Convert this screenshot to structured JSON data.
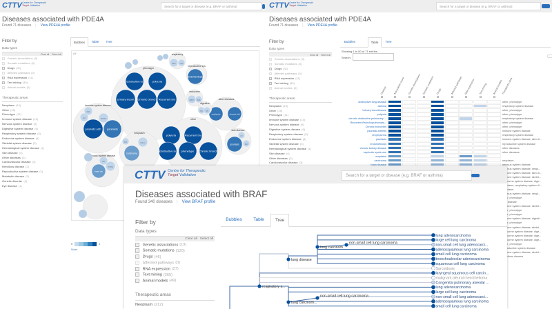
{
  "colors": {
    "brand": "#2a6ebb",
    "dark_blue": "#08519c",
    "header_bg": "#eeeeee"
  },
  "logo": {
    "text": "CTTV",
    "line1": "Centre for Therapeutic",
    "line2a": "Target",
    "line2b": " Validation"
  },
  "search": {
    "placeholder": "Search for a target or disease (e.g. BRAF or asthma)",
    "icon": "search-button"
  },
  "pde4a": {
    "title": "Diseases associated with PDE4A",
    "found": "Found 71 diseases",
    "profile_link": "View PDE4A profile",
    "filter_by": "Filter by",
    "data_types_label": "Data types",
    "clear_all": "Clear all",
    "select_all": "Select all",
    "data_types": [
      {
        "label": "Genetic associations",
        "count": "(0)",
        "enabled": false
      },
      {
        "label": "Somatic mutations",
        "count": "(0)",
        "enabled": false
      },
      {
        "label": "Drugs",
        "count": "(41)",
        "enabled": true
      },
      {
        "label": "Affected pathways",
        "count": "(0)",
        "enabled": false
      },
      {
        "label": "RNA expression",
        "count": "(11)",
        "enabled": true
      },
      {
        "label": "Text mining",
        "count": "(30)",
        "enabled": true
      },
      {
        "label": "Animal models",
        "count": "(0)",
        "enabled": false
      }
    ],
    "therapeutic_label": "Therapeutic areas",
    "therapeutic_areas": [
      {
        "label": "Neoplasm",
        "count": "(19)"
      },
      {
        "label": "Other",
        "count": "(15)"
      },
      {
        "label": "Phenotype",
        "count": "(11)"
      },
      {
        "label": "Immune system disease",
        "count": "(10)"
      },
      {
        "label": "Nervous system disease",
        "count": "(9)"
      },
      {
        "label": "Digestive system disease",
        "count": "(6)"
      },
      {
        "label": "Respiratory system disease",
        "count": "(5)"
      },
      {
        "label": "Endocrine system disease",
        "count": "(4)"
      },
      {
        "label": "Skeletal system disease",
        "count": "(3)"
      },
      {
        "label": "Hematological system disease",
        "count": "(1)"
      },
      {
        "label": "Skin disease",
        "count": "(4)"
      },
      {
        "label": "Other diseases",
        "count": "(3)"
      },
      {
        "label": "Cardiovascular disease",
        "count": "(3)"
      },
      {
        "label": "Infectious disease",
        "count": "(2)"
      },
      {
        "label": "Reproductive system disease",
        "count": "(2)"
      },
      {
        "label": "Metabolic disease",
        "count": "(2)"
      },
      {
        "label": "Genetic disorder",
        "count": "(1)"
      },
      {
        "label": "Eye disease",
        "count": "(1)"
      }
    ],
    "tabs": [
      "Bubbles",
      "Table",
      "Tree"
    ],
    "bubbles_view": {
      "root_label": "All",
      "legend_min": "0",
      "legend_max": "1",
      "legend_caption": "Score",
      "groups": [
        {
          "label": "phenotype",
          "children": [
            {
              "label": "obstructive lu",
              "score": 1
            },
            {
              "label": "polyuria",
              "score": 1
            },
            {
              "label": "Urinary incont",
              "score": 1
            },
            {
              "label": "Chronic bronch",
              "score": 1
            },
            {
              "label": "Recurrent bro",
              "score": 1
            }
          ]
        },
        {
          "label": "immune system disease",
          "children": [
            {
              "label": "psoriatic arth",
              "score": 1
            },
            {
              "label": "psoriasis",
              "score": 0.8
            },
            {
              "label": "gout",
              "score": 0.3
            },
            {
              "label": "atopic",
              "score": 0.3
            },
            {
              "label": "rheumat",
              "score": 0.3
            }
          ]
        },
        {
          "label": "other",
          "children": [
            {
              "label": "polyuria",
              "score": 1
            },
            {
              "label": "Recurrent bro",
              "score": 1
            },
            {
              "label": "obstructive lu",
              "score": 1
            },
            {
              "label": "phenotype",
              "score": 1
            },
            {
              "label": "Chronic bronch",
              "score": 1
            }
          ]
        },
        {
          "label": "other diseases",
          "children": [
            {
              "label": "nephrotic",
              "score": 0.8
            },
            {
              "label": "chronic kid",
              "score": 0.8
            }
          ]
        },
        {
          "label": "skin disease",
          "children": [
            {
              "label": "psoriasis",
              "score": 0.8
            },
            {
              "label": "acne",
              "score": 0.3
            },
            {
              "label": "atopic",
              "score": 0.3
            }
          ]
        },
        {
          "label": "reproductive sys",
          "children": [
            {
              "label": "endometriosis",
              "score": 0.8
            }
          ]
        },
        {
          "label": "neoplasm",
          "children": [
            {
              "label": "carcinoma",
              "score": 0.6
            },
            {
              "label": "lung ca",
              "score": 0.3
            },
            {
              "label": "breast",
              "score": 0.3
            }
          ]
        },
        {
          "label": "nervous system disease",
          "children": [
            {
              "label": "brain dis",
              "score": 0.6
            },
            {
              "label": "cerebral",
              "score": 0.3
            },
            {
              "label": "gout",
              "score": 0.3
            }
          ]
        },
        {
          "label": "respiratory",
          "children": [
            {
              "label": "type II",
              "score": 0.3
            },
            {
              "label": "urinary",
              "score": 0.3
            }
          ]
        },
        {
          "label": "endocrine",
          "children": [
            {
              "label": "diabetes",
              "score": 0.3
            },
            {
              "label": "obesity",
              "score": 0.3
            }
          ]
        },
        {
          "label": "digestive",
          "children": [
            {
              "label": "ulcerat",
              "score": 0.3
            },
            {
              "label": "Crohn",
              "score": 0.3
            }
          ]
        }
      ]
    },
    "table_view": {
      "showing": "Showing 1 to 50 of 71 entries",
      "search_label": "Search:",
      "columns": [
        "Disease",
        "Association score",
        "Genetic associations",
        "Somatic mutations",
        "Drugs",
        "Affected pathways",
        "RNA expression",
        "Text mining",
        "Animal models",
        "Therapeutic area"
      ],
      "rows": [
        {
          "disease": "obstructive lung disease",
          "scores": [
            1,
            0,
            0,
            1,
            0,
            0,
            0,
            0
          ],
          "area": "other, phenotype"
        },
        {
          "disease": "asthma",
          "scores": [
            1,
            0,
            0,
            1,
            0,
            0,
            0.3,
            0
          ],
          "area": "respiratory system disease"
        },
        {
          "disease": "Urinary incontinence",
          "scores": [
            1,
            0,
            0,
            1,
            0,
            0,
            0,
            0
          ],
          "area": "other, phenotype"
        },
        {
          "disease": "polyuria",
          "scores": [
            1,
            0,
            0,
            1,
            0,
            0,
            0,
            0
          ],
          "area": "other, phenotype"
        },
        {
          "disease": "chronic obstructive pulmonary ...",
          "scores": [
            1,
            0,
            0,
            1,
            0,
            0.3,
            0,
            0
          ],
          "area": "respiratory system disease"
        },
        {
          "disease": "Recurrent Bronchopulmonary...",
          "scores": [
            1,
            0,
            0,
            1,
            0,
            0,
            0,
            0
          ],
          "area": "other, phenotype"
        },
        {
          "disease": "Chronic bronchitis",
          "scores": [
            1,
            0,
            0,
            1,
            0,
            0,
            0,
            0
          ],
          "area": "other, phenotype"
        },
        {
          "disease": "psoriatic arthritis",
          "scores": [
            1,
            0,
            0,
            1,
            0,
            0,
            0,
            0
          ],
          "area": "immune system disease"
        },
        {
          "disease": "emphysema",
          "scores": [
            1,
            0,
            0,
            1,
            0,
            0,
            0,
            0
          ],
          "area": "respiratory system disease"
        },
        {
          "disease": "psoriasis",
          "scores": [
            0.8,
            0,
            0,
            0.8,
            0,
            0,
            0,
            0
          ],
          "area": "immune system disease, skin di..."
        },
        {
          "disease": "endometriosis",
          "scores": [
            0.8,
            0,
            0,
            0.8,
            0,
            0,
            0,
            0
          ],
          "area": "reproductive system disease"
        },
        {
          "disease": "chronic kidney disease",
          "scores": [
            0.8,
            0,
            0,
            0.8,
            0,
            0,
            0,
            0
          ],
          "area": "other diseases"
        },
        {
          "disease": "nephrotic syndrome",
          "scores": [
            0.8,
            0,
            0,
            0.8,
            0,
            0,
            0,
            0
          ],
          "area": "other diseases"
        },
        {
          "disease": "neoplasm",
          "scores": [
            0.6,
            0,
            0,
            0.3,
            0,
            0.6,
            0.3,
            0
          ],
          "area": ""
        },
        {
          "disease": "carcinoma",
          "scores": [
            0.6,
            0,
            0,
            0.4,
            0,
            0.5,
            0.3,
            0
          ],
          "area": "neoplasm"
        },
        {
          "disease": "brain disease",
          "scores": [
            0.6,
            0,
            0,
            0.4,
            0,
            0.5,
            0.3,
            0
          ],
          "area": "nervous system disease"
        },
        {
          "disease": "cerebral nervous system neopl...",
          "scores": [
            0.5,
            0,
            0,
            0.4,
            0,
            0.5,
            0.3,
            0
          ],
          "area": "nervous system disease, neopl..."
        },
        {
          "disease": "",
          "scores": [],
          "area": "immune system disease, skin di..."
        },
        {
          "disease": "",
          "scores": [],
          "area": "immune system disease, skelet..."
        },
        {
          "disease": "",
          "scores": [],
          "area": "endocrine system disease, dige..."
        },
        {
          "disease": "",
          "scores": [],
          "area": "neoplasm, respiratory system di..."
        },
        {
          "disease": "",
          "scores": [],
          "area": "neoplasm"
        },
        {
          "disease": "",
          "scores": [],
          "area": "nervous system disease, neopl..."
        },
        {
          "disease": "",
          "scores": [],
          "area": "other, phenotype"
        },
        {
          "disease": "",
          "scores": [],
          "area": "skin disease"
        },
        {
          "disease": "",
          "scores": [],
          "area": "immune system disease, skelet..."
        },
        {
          "disease": "",
          "scores": [],
          "area": "other, phenotype"
        },
        {
          "disease": "",
          "scores": [],
          "area": "other, phenotype"
        },
        {
          "disease": "",
          "scores": [],
          "area": "immune system disease, digesti..."
        },
        {
          "disease": "",
          "scores": [],
          "area": "other, phenotype"
        },
        {
          "disease": "",
          "scores": [],
          "area": "immune system disease, skelet..."
        },
        {
          "disease": "",
          "scores": [],
          "area": "endocrine system disease, dige..."
        },
        {
          "disease": "",
          "scores": [],
          "area": "endocrine system disease, dige..."
        },
        {
          "disease": "",
          "scores": [],
          "area": "endocrine system disease, dige..."
        },
        {
          "disease": "",
          "scores": [],
          "area": "other, phenotype"
        },
        {
          "disease": "",
          "scores": [],
          "area": "reproductive system disease"
        },
        {
          "disease": "",
          "scores": [],
          "area": "immune system disease, skelet..."
        },
        {
          "disease": "",
          "scores": [],
          "area": "infectious disease"
        }
      ]
    }
  },
  "braf": {
    "title": "Diseases associated with BRAF",
    "found": "Found 340 diseases",
    "profile_link": "View BRAF profile",
    "filter_by": "Filter by",
    "data_types_label": "Data types",
    "clear_all": "Clear all",
    "select_all": "Select all",
    "data_types": [
      {
        "label": "Genetic associations",
        "count": "(19)",
        "enabled": true
      },
      {
        "label": "Somatic mutations",
        "count": "(120)",
        "enabled": true
      },
      {
        "label": "Drugs",
        "count": "(46)",
        "enabled": true
      },
      {
        "label": "Affected pathways",
        "count": "(0)",
        "enabled": false
      },
      {
        "label": "RNA expression",
        "count": "(27)",
        "enabled": true
      },
      {
        "label": "Text mining",
        "count": "(265)",
        "enabled": true
      },
      {
        "label": "Animal models",
        "count": "(49)",
        "enabled": true
      }
    ],
    "therapeutic_label": "Therapeutic areas",
    "therapeutic_areas": [
      {
        "label": "Neoplasm",
        "count": "(212)"
      }
    ],
    "tabs": [
      "Bubbles",
      "Table",
      "Tree"
    ],
    "active_tab": "Tree",
    "tree": {
      "nodes": [
        {
          "id": "resp",
          "label": "respiratory s..."
        },
        {
          "id": "lungdis",
          "label": "lung disease"
        },
        {
          "id": "lc1",
          "label": "lung carcinom"
        },
        {
          "id": "nsclc1",
          "label": "non-small cell lung carcinoma"
        },
        {
          "id": "lc2",
          "label": "lung carcinom..."
        },
        {
          "id": "nsclc2",
          "label": "non-small cell lung carcinoma"
        }
      ],
      "leaves": [
        {
          "label": "lung adenocarcinoma",
          "score": 1
        },
        {
          "label": "large cell lung carcinoma",
          "score": 1
        },
        {
          "label": "non-small cell lung adenocarci...",
          "score": 0.3
        },
        {
          "label": "adenosquamous lung carcinoma",
          "score": 1
        },
        {
          "label": "small cell lung carcinoma",
          "score": 1
        },
        {
          "label": "bronchoalveolar adenocarcinoma",
          "score": 1
        },
        {
          "label": "squamous cell lung carcinoma",
          "score": 1
        },
        {
          "label": "Sarcoidosis",
          "score": 0
        },
        {
          "label": "laryngeal squamous cell carcin...",
          "score": 1
        },
        {
          "label": "malignant pleural mesothelioma",
          "score": 0
        },
        {
          "label": "Congenital pulmonary alveolar ...",
          "score": 0.3
        },
        {
          "label": "lung adenocarcinoma",
          "score": 1
        },
        {
          "label": "large cell lung carcinoma",
          "score": 1
        },
        {
          "label": "non-small cell lung adenocarci...",
          "score": 0.3
        },
        {
          "label": "adenosquamous lung carcinoma",
          "score": 1
        },
        {
          "label": "small cell lung carcinoma",
          "score": 1
        }
      ]
    }
  }
}
